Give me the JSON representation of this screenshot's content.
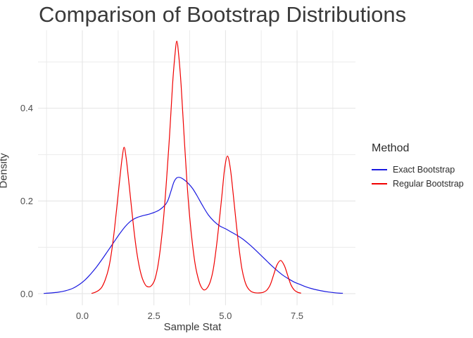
{
  "title": "Comparison of Bootstrap Distributions",
  "x_axis": {
    "label": "Sample Stat",
    "ticks": [
      {
        "value": 0,
        "label": "0.0"
      },
      {
        "value": 2.5,
        "label": "2.5"
      },
      {
        "value": 5,
        "label": "5.0"
      },
      {
        "value": 7.5,
        "label": "7.5"
      }
    ]
  },
  "y_axis": {
    "label": "Density",
    "ticks": [
      {
        "value": 0,
        "label": "0.0"
      },
      {
        "value": 0.2,
        "label": "0.2"
      },
      {
        "value": 0.4,
        "label": "0.4"
      }
    ]
  },
  "legend": {
    "title": "Method",
    "position": "right"
  },
  "chart_data": {
    "type": "line",
    "subtype": "density",
    "title": "Comparison of Bootstrap Distributions",
    "xlabel": "Sample Stat",
    "ylabel": "Density",
    "xlim": [
      -1.55,
      9.54
    ],
    "ylim": [
      -0.025,
      0.568
    ],
    "x_major_gridlines": [
      0,
      2.5,
      5,
      7.5
    ],
    "x_minor_gridlines": [
      -1.25,
      1.25,
      3.75,
      6.25,
      8.75
    ],
    "y_major_gridlines": [
      0,
      0.2,
      0.4
    ],
    "y_minor_gridlines": [
      0.1,
      0.3,
      0.5
    ],
    "grid": true,
    "legend_position": "right",
    "series": [
      {
        "name": "Exact Bootstrap",
        "color": "#1a1ae0",
        "points": [
          [
            -1.35,
            0.0005
          ],
          [
            -1.1,
            0.0015
          ],
          [
            -0.85,
            0.003
          ],
          [
            -0.6,
            0.006
          ],
          [
            -0.35,
            0.011
          ],
          [
            -0.1,
            0.02
          ],
          [
            0.1,
            0.03
          ],
          [
            0.3,
            0.043
          ],
          [
            0.5,
            0.058
          ],
          [
            0.7,
            0.075
          ],
          [
            0.9,
            0.093
          ],
          [
            1.1,
            0.111
          ],
          [
            1.3,
            0.129
          ],
          [
            1.5,
            0.145
          ],
          [
            1.7,
            0.157
          ],
          [
            1.9,
            0.164
          ],
          [
            2.1,
            0.168
          ],
          [
            2.3,
            0.171
          ],
          [
            2.5,
            0.175
          ],
          [
            2.7,
            0.181
          ],
          [
            2.9,
            0.192
          ],
          [
            3.0,
            0.203
          ],
          [
            3.1,
            0.222
          ],
          [
            3.2,
            0.241
          ],
          [
            3.3,
            0.25
          ],
          [
            3.42,
            0.2505
          ],
          [
            3.55,
            0.246
          ],
          [
            3.7,
            0.238
          ],
          [
            3.85,
            0.227
          ],
          [
            4.0,
            0.212
          ],
          [
            4.2,
            0.19
          ],
          [
            4.4,
            0.17
          ],
          [
            4.6,
            0.156
          ],
          [
            4.8,
            0.146
          ],
          [
            5.0,
            0.14
          ],
          [
            5.2,
            0.133
          ],
          [
            5.4,
            0.126
          ],
          [
            5.6,
            0.118
          ],
          [
            5.8,
            0.108
          ],
          [
            6.0,
            0.097
          ],
          [
            6.2,
            0.085
          ],
          [
            6.4,
            0.073
          ],
          [
            6.6,
            0.061
          ],
          [
            6.8,
            0.05
          ],
          [
            7.0,
            0.04
          ],
          [
            7.2,
            0.032
          ],
          [
            7.4,
            0.025
          ],
          [
            7.6,
            0.02
          ],
          [
            7.8,
            0.015
          ],
          [
            8.0,
            0.011
          ],
          [
            8.2,
            0.008
          ],
          [
            8.4,
            0.0055
          ],
          [
            8.6,
            0.0035
          ],
          [
            8.8,
            0.002
          ],
          [
            9.0,
            0.001
          ],
          [
            9.1,
            0.0008
          ]
        ]
      },
      {
        "name": "Regular Bootstrap",
        "color": "#f00000",
        "points": [
          [
            0.32,
            0.0005
          ],
          [
            0.45,
            0.003
          ],
          [
            0.57,
            0.007
          ],
          [
            0.68,
            0.014
          ],
          [
            0.8,
            0.03
          ],
          [
            0.92,
            0.055
          ],
          [
            1.02,
            0.09
          ],
          [
            1.12,
            0.138
          ],
          [
            1.22,
            0.196
          ],
          [
            1.32,
            0.255
          ],
          [
            1.39,
            0.293
          ],
          [
            1.46,
            0.316
          ],
          [
            1.53,
            0.293
          ],
          [
            1.6,
            0.255
          ],
          [
            1.7,
            0.196
          ],
          [
            1.8,
            0.138
          ],
          [
            1.9,
            0.09
          ],
          [
            2.0,
            0.055
          ],
          [
            2.1,
            0.032
          ],
          [
            2.2,
            0.019
          ],
          [
            2.26,
            0.0155
          ],
          [
            2.32,
            0.0145
          ],
          [
            2.38,
            0.0155
          ],
          [
            2.46,
            0.021
          ],
          [
            2.54,
            0.032
          ],
          [
            2.64,
            0.06
          ],
          [
            2.74,
            0.105
          ],
          [
            2.84,
            0.165
          ],
          [
            2.94,
            0.245
          ],
          [
            3.05,
            0.345
          ],
          [
            3.15,
            0.45
          ],
          [
            3.23,
            0.512
          ],
          [
            3.3,
            0.545
          ],
          [
            3.37,
            0.512
          ],
          [
            3.45,
            0.45
          ],
          [
            3.55,
            0.345
          ],
          [
            3.65,
            0.245
          ],
          [
            3.75,
            0.165
          ],
          [
            3.85,
            0.105
          ],
          [
            3.95,
            0.06
          ],
          [
            4.05,
            0.032
          ],
          [
            4.14,
            0.016
          ],
          [
            4.25,
            0.008
          ],
          [
            4.37,
            0.013
          ],
          [
            4.48,
            0.028
          ],
          [
            4.58,
            0.055
          ],
          [
            4.68,
            0.1
          ],
          [
            4.78,
            0.155
          ],
          [
            4.88,
            0.215
          ],
          [
            4.97,
            0.27
          ],
          [
            5.07,
            0.297
          ],
          [
            5.17,
            0.27
          ],
          [
            5.27,
            0.215
          ],
          [
            5.37,
            0.155
          ],
          [
            5.47,
            0.1
          ],
          [
            5.57,
            0.055
          ],
          [
            5.67,
            0.028
          ],
          [
            5.77,
            0.013
          ],
          [
            5.89,
            0.005
          ],
          [
            6.02,
            0.002
          ],
          [
            6.17,
            0.0015
          ],
          [
            6.32,
            0.003
          ],
          [
            6.45,
            0.008
          ],
          [
            6.57,
            0.02
          ],
          [
            6.69,
            0.042
          ],
          [
            6.8,
            0.062
          ],
          [
            6.93,
            0.0715
          ],
          [
            7.06,
            0.06
          ],
          [
            7.17,
            0.04
          ],
          [
            7.28,
            0.02
          ],
          [
            7.4,
            0.008
          ],
          [
            7.52,
            0.003
          ],
          [
            7.64,
            0.001
          ]
        ]
      }
    ],
    "style": {
      "major_grid_color": "#e3e3e3",
      "minor_grid_color": "#ebebeb",
      "background": "#ffffff"
    }
  }
}
